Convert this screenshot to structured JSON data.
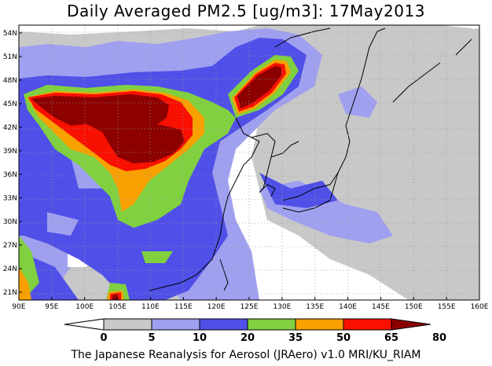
{
  "title": "Daily Averaged PM2.5 [ug/m3]: 17May2013",
  "footer": "The Japanese Reanalysis for Aerosol (JRAero) v1.0 MRI/KU_RIAM",
  "map": {
    "lon_range": [
      90,
      160
    ],
    "lat_range": [
      20,
      55
    ],
    "lat_labels": [
      "21N",
      "24N",
      "27N",
      "30N",
      "33N",
      "36N",
      "39N",
      "42N",
      "45N",
      "48N",
      "51N",
      "54N"
    ],
    "lon_labels": [
      "90E",
      "95E",
      "100E",
      "105E",
      "110E",
      "115E",
      "120E",
      "125E",
      "130E",
      "135E",
      "140E",
      "145E",
      "150E",
      "155E",
      "160E"
    ],
    "gridlines": "dotted"
  },
  "colorbar": {
    "labels": [
      "0",
      "5",
      "10",
      "20",
      "35",
      "50",
      "65",
      "80"
    ],
    "colors": [
      "#ffffff",
      "#c8c8c8",
      "#a0a0f0",
      "#5050e8",
      "#80d040",
      "#f8a000",
      "#f81000",
      "#8c0000"
    ]
  }
}
